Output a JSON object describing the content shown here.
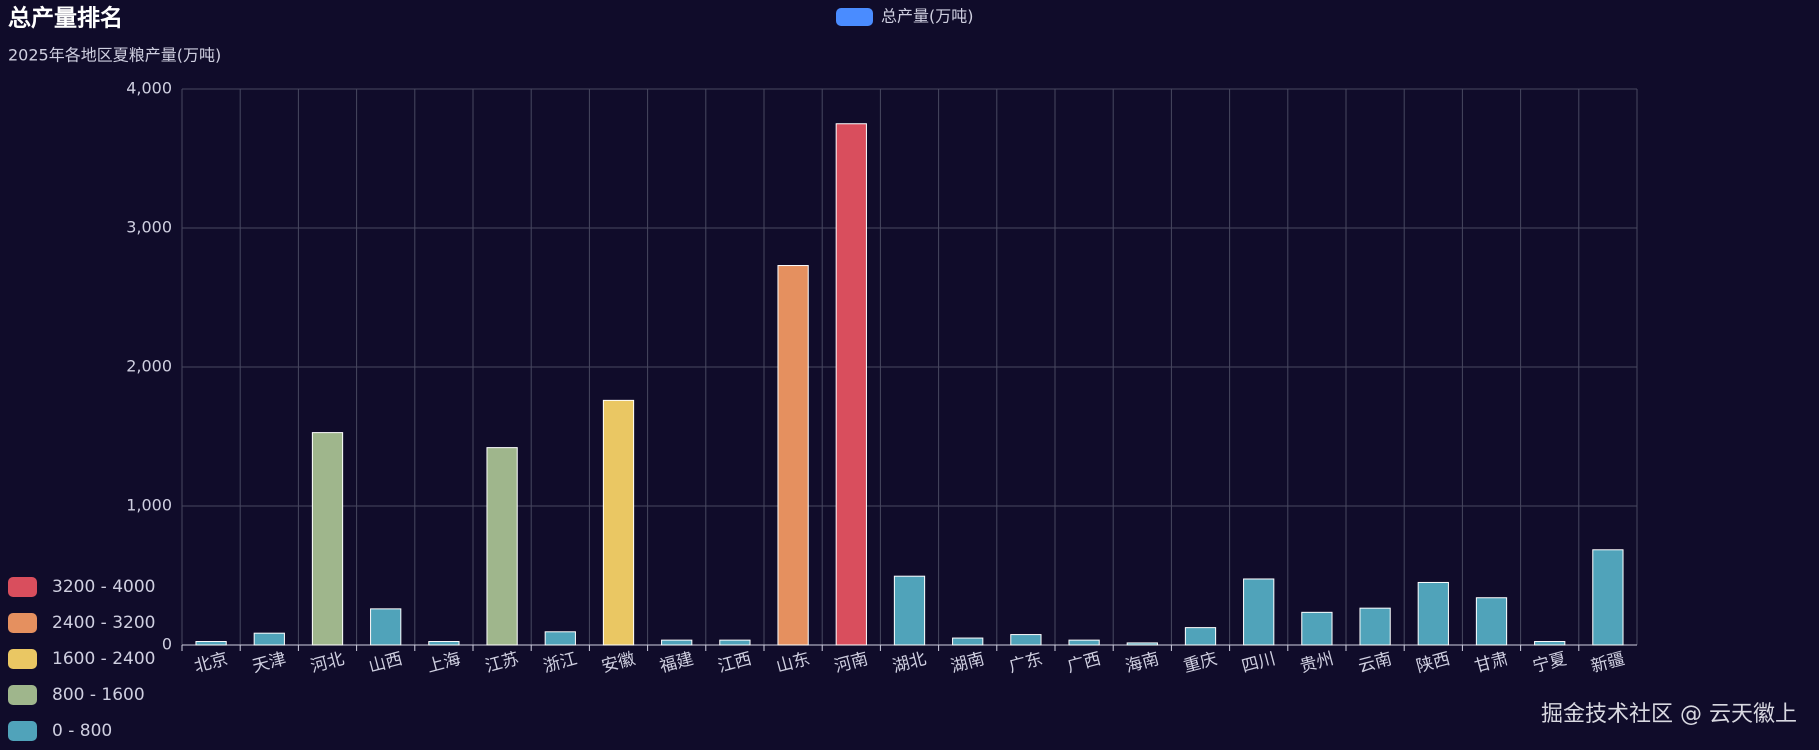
{
  "chart_data": {
    "type": "bar",
    "title": "总产量排名",
    "subtitle": "2025年各地区夏粮产量(万吨)",
    "watermark": "掘金技术社区 @ 云天徽上",
    "categories": [
      "北京",
      "天津",
      "河北",
      "山西",
      "上海",
      "江苏",
      "浙江",
      "安徽",
      "福建",
      "江西",
      "山东",
      "河南",
      "湖北",
      "湖南",
      "广东",
      "广西",
      "海南",
      "重庆",
      "四川",
      "贵州",
      "云南",
      "陕西",
      "甘肃",
      "宁夏",
      "新疆"
    ],
    "series": [
      {
        "name": "总产量(万吨)",
        "color": "#4a8cff",
        "values": [
          25,
          85,
          1528,
          260,
          25,
          1420,
          95,
          1760,
          35,
          35,
          2730,
          3750,
          495,
          50,
          75,
          35,
          15,
          125,
          475,
          235,
          265,
          450,
          340,
          25,
          685
        ]
      }
    ],
    "ylim": [
      0,
      4000
    ],
    "yticks": [
      0,
      {
        "value": 1000,
        "label": "1,000"
      },
      {
        "value": 2000,
        "label": "2,000"
      },
      {
        "value": 3000,
        "label": "3,000"
      },
      {
        "value": 4000,
        "label": "4,000"
      }
    ],
    "grid": true,
    "pieces": [
      {
        "min": 3200,
        "max": 4000,
        "label": "3200 - 4000",
        "color": "#d94e5d"
      },
      {
        "min": 2400,
        "max": 3200,
        "label": "2400 - 3200",
        "color": "#e5905f"
      },
      {
        "min": 1600,
        "max": 2400,
        "label": "1600 - 2400",
        "color": "#eac763"
      },
      {
        "min": 800,
        "max": 1600,
        "label": "800 - 1600",
        "color": "#9fb68c"
      },
      {
        "min": 0,
        "max": 800,
        "label": "0 - 800",
        "color": "#50a3ba"
      }
    ]
  }
}
